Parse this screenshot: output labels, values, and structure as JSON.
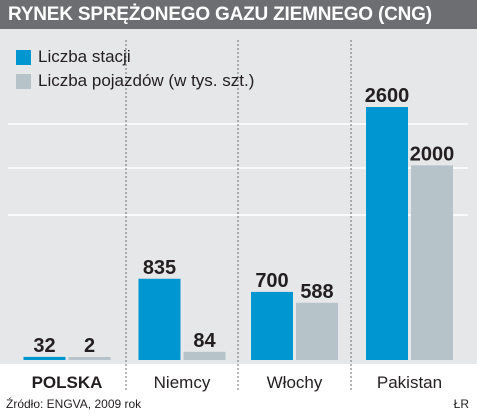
{
  "title": "RYNEK SPRĘŻONEGO GAZU ZIEMNEGO (CNG)",
  "source": "Źródło: ENGVA, 2009 rok",
  "author": "ŁR",
  "colors": {
    "header_bg": "#6d6e71",
    "plot_bg": "#e6e7e8",
    "stations": "#0096d1",
    "vehicles": "#b6c3c9"
  },
  "chart_data": {
    "type": "bar",
    "title": "RYNEK SPRĘŻONEGO GAZU ZIEMNEGO (CNG)",
    "categories": [
      "POLSKA",
      "Niemcy",
      "Włochy",
      "Pakistan"
    ],
    "highlight_category": "POLSKA",
    "series": [
      {
        "name": "Liczba stacji",
        "values": [
          32,
          835,
          700,
          2600
        ]
      },
      {
        "name": "Liczba pojazdów (w tys. szt.)",
        "values": [
          2,
          84,
          588,
          2000
        ]
      }
    ],
    "data_labels": [
      [
        "32",
        "835",
        "700",
        "2600"
      ],
      [
        "2",
        "84",
        "588",
        "2000"
      ]
    ],
    "xlabel": "",
    "ylabel": "",
    "grid": true,
    "legend": "top-left"
  }
}
